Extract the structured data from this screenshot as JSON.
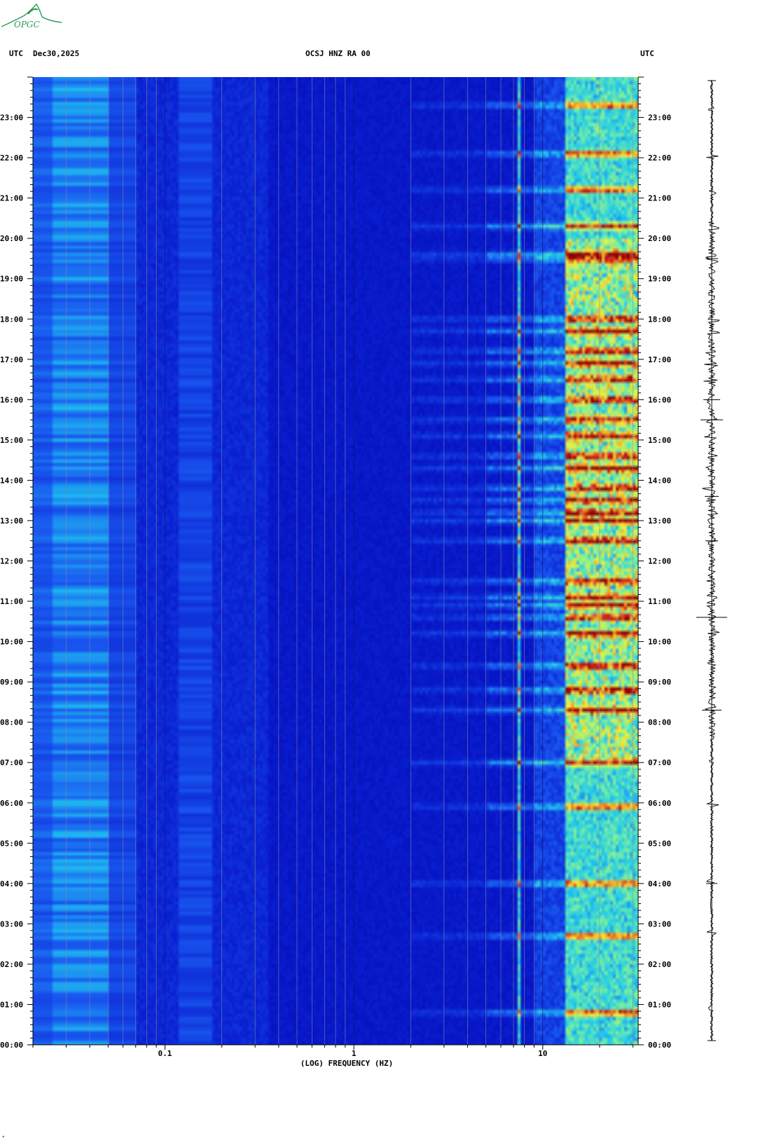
{
  "header": {
    "left_label": "UTC",
    "date": "Dec30,2025",
    "title": "OCSJ HNZ RA 00",
    "right_label": "UTC"
  },
  "logo": {
    "text": "OPGC",
    "icon": "mountain-logo-icon",
    "color": "#2a9a5a"
  },
  "footer_mark": "*",
  "chart_data": {
    "type": "heatmap",
    "title": "OCSJ HNZ RA 00",
    "xlabel": "(LOG) FREQUENCY (HZ)",
    "x_scale": "log",
    "xlim": [
      0.02,
      32
    ],
    "x_tick_labels": [
      "0.1",
      "1",
      "10"
    ],
    "x_tick_values": [
      0.1,
      1,
      10
    ],
    "y_tick_labels": [
      "00:00",
      "01:00",
      "02:00",
      "03:00",
      "04:00",
      "05:00",
      "06:00",
      "07:00",
      "08:00",
      "09:00",
      "10:00",
      "11:00",
      "12:00",
      "13:00",
      "14:00",
      "15:00",
      "16:00",
      "17:00",
      "18:00",
      "19:00",
      "20:00",
      "21:00",
      "22:00",
      "23:00"
    ],
    "ylim_hours": [
      0,
      24
    ],
    "grid": true,
    "colormap": [
      "#0000a0",
      "#0a1ed0",
      "#1a5af0",
      "#1ec8f0",
      "#78f0a0",
      "#f0f03c",
      "#f09628",
      "#c81e1e",
      "#8c0000"
    ],
    "low_freq_band_hz": [
      0.025,
      0.05
    ],
    "mid_band_hz": [
      0.12,
      0.18
    ],
    "resonance_line_hz": 7.5,
    "strong_energy_band_hz": [
      13,
      30
    ],
    "strong_events_hours": [
      0.8,
      2.7,
      4.0,
      5.9,
      7.0,
      8.3,
      8.8,
      9.4,
      10.2,
      10.6,
      10.9,
      11.1,
      11.5,
      12.5,
      13.0,
      13.2,
      13.5,
      13.8,
      14.3,
      14.6,
      15.1,
      15.5,
      16.0,
      16.5,
      16.9,
      17.2,
      17.7,
      18.0,
      19.5,
      19.6,
      20.3,
      21.2,
      22.1,
      23.3
    ]
  },
  "trace": {
    "type": "seismogram",
    "color": "#000000"
  }
}
